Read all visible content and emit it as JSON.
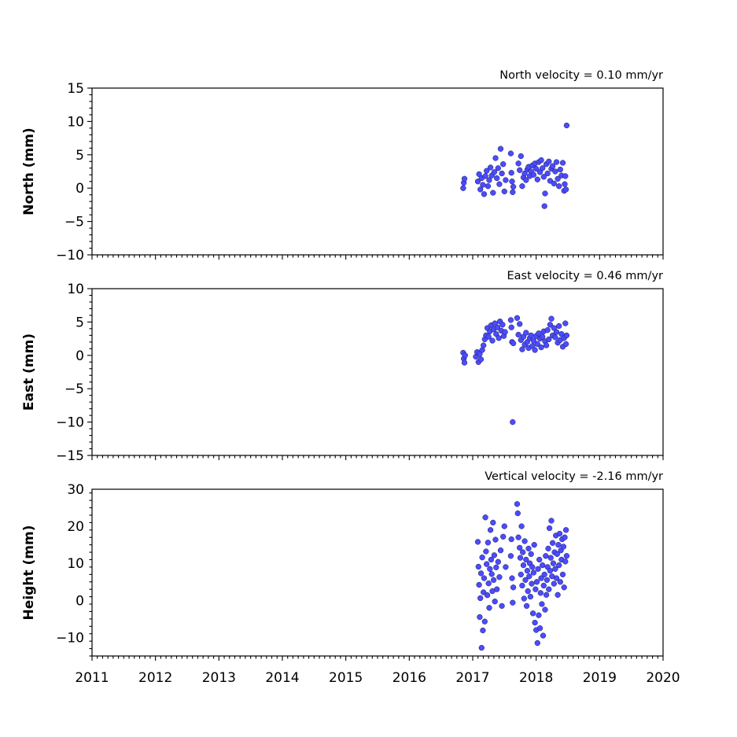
{
  "chart_data": [
    {
      "type": "scatter",
      "title": "North velocity = 0.10 mm/yr",
      "ylabel": "North (mm)",
      "xlabel": "",
      "xlim": [
        2011,
        2020
      ],
      "ylim": [
        -10,
        15
      ],
      "yticks": [
        -10,
        -5,
        0,
        5,
        10,
        15
      ],
      "ytick_labels": [
        "−10",
        "−5",
        "0",
        "5",
        "10",
        "15"
      ],
      "xticks": [
        2011,
        2012,
        2013,
        2014,
        2015,
        2016,
        2017,
        2018,
        2019,
        2020
      ],
      "xtick_labels": [],
      "color": "#4b4bff",
      "points": [
        [
          2016.85,
          0.0
        ],
        [
          2016.86,
          0.8
        ],
        [
          2016.87,
          1.4
        ],
        [
          2017.08,
          1.0
        ],
        [
          2017.1,
          2.1
        ],
        [
          2017.12,
          -0.2
        ],
        [
          2017.14,
          1.5
        ],
        [
          2017.16,
          0.5
        ],
        [
          2017.18,
          -0.9
        ],
        [
          2017.2,
          1.8
        ],
        [
          2017.22,
          2.6
        ],
        [
          2017.24,
          0.3
        ],
        [
          2017.26,
          1.2
        ],
        [
          2017.28,
          3.1
        ],
        [
          2017.3,
          1.9
        ],
        [
          2017.32,
          -0.7
        ],
        [
          2017.34,
          2.4
        ],
        [
          2017.36,
          4.5
        ],
        [
          2017.38,
          1.5
        ],
        [
          2017.4,
          3.0
        ],
        [
          2017.42,
          0.6
        ],
        [
          2017.44,
          5.9
        ],
        [
          2017.46,
          2.2
        ],
        [
          2017.48,
          3.6
        ],
        [
          2017.5,
          -0.5
        ],
        [
          2017.52,
          1.2
        ],
        [
          2017.6,
          5.2
        ],
        [
          2017.61,
          2.3
        ],
        [
          2017.62,
          1.0
        ],
        [
          2017.63,
          -0.6
        ],
        [
          2017.64,
          0.2
        ],
        [
          2017.72,
          3.7
        ],
        [
          2017.74,
          2.7
        ],
        [
          2017.76,
          4.8
        ],
        [
          2017.78,
          0.3
        ],
        [
          2017.8,
          1.6
        ],
        [
          2017.82,
          2.2
        ],
        [
          2017.84,
          1.2
        ],
        [
          2017.86,
          2.8
        ],
        [
          2017.88,
          3.2
        ],
        [
          2017.9,
          1.8
        ],
        [
          2017.92,
          2.5
        ],
        [
          2017.94,
          3.4
        ],
        [
          2017.96,
          2.0
        ],
        [
          2017.98,
          3.7
        ],
        [
          2018.0,
          2.9
        ],
        [
          2018.02,
          1.3
        ],
        [
          2018.04,
          3.9
        ],
        [
          2018.06,
          2.4
        ],
        [
          2018.08,
          4.2
        ],
        [
          2018.1,
          3.0
        ],
        [
          2018.12,
          1.7
        ],
        [
          2018.13,
          -2.7
        ],
        [
          2018.14,
          -0.8
        ],
        [
          2018.16,
          3.6
        ],
        [
          2018.18,
          2.2
        ],
        [
          2018.2,
          4.0
        ],
        [
          2018.22,
          1.1
        ],
        [
          2018.24,
          2.9
        ],
        [
          2018.26,
          3.3
        ],
        [
          2018.28,
          0.7
        ],
        [
          2018.3,
          2.5
        ],
        [
          2018.32,
          3.9
        ],
        [
          2018.34,
          1.4
        ],
        [
          2018.36,
          0.3
        ],
        [
          2018.38,
          2.8
        ],
        [
          2018.4,
          1.9
        ],
        [
          2018.42,
          3.8
        ],
        [
          2018.44,
          -0.4
        ],
        [
          2018.45,
          0.6
        ],
        [
          2018.46,
          1.8
        ],
        [
          2018.47,
          -0.2
        ],
        [
          2018.48,
          9.4
        ]
      ]
    },
    {
      "type": "scatter",
      "title": "East velocity = 0.46 mm/yr",
      "ylabel": "East (mm)",
      "xlabel": "",
      "xlim": [
        2011,
        2020
      ],
      "ylim": [
        -15,
        10
      ],
      "yticks": [
        -15,
        -10,
        -5,
        0,
        5,
        10
      ],
      "ytick_labels": [
        "−15",
        "−10",
        "−5",
        "0",
        "5",
        "10"
      ],
      "xticks": [
        2011,
        2012,
        2013,
        2014,
        2015,
        2016,
        2017,
        2018,
        2019,
        2020
      ],
      "xtick_labels": [],
      "color": "#4b4bff",
      "points": [
        [
          2016.85,
          0.4
        ],
        [
          2016.86,
          -0.5
        ],
        [
          2016.87,
          -1.1
        ],
        [
          2016.88,
          0.0
        ],
        [
          2017.05,
          -0.2
        ],
        [
          2017.07,
          0.5
        ],
        [
          2017.09,
          -1.0
        ],
        [
          2017.11,
          0.2
        ],
        [
          2017.13,
          -0.6
        ],
        [
          2017.15,
          0.8
        ],
        [
          2017.17,
          1.5
        ],
        [
          2017.19,
          2.4
        ],
        [
          2017.21,
          3.0
        ],
        [
          2017.23,
          4.1
        ],
        [
          2017.25,
          2.8
        ],
        [
          2017.27,
          3.6
        ],
        [
          2017.29,
          4.5
        ],
        [
          2017.31,
          2.2
        ],
        [
          2017.33,
          3.9
        ],
        [
          2017.35,
          4.8
        ],
        [
          2017.37,
          3.2
        ],
        [
          2017.39,
          4.2
        ],
        [
          2017.41,
          2.6
        ],
        [
          2017.43,
          5.1
        ],
        [
          2017.45,
          3.7
        ],
        [
          2017.47,
          4.6
        ],
        [
          2017.49,
          2.9
        ],
        [
          2017.51,
          3.5
        ],
        [
          2017.6,
          5.3
        ],
        [
          2017.61,
          4.2
        ],
        [
          2017.62,
          2.0
        ],
        [
          2017.63,
          -10.0
        ],
        [
          2017.64,
          1.8
        ],
        [
          2017.7,
          5.6
        ],
        [
          2017.72,
          3.1
        ],
        [
          2017.74,
          4.7
        ],
        [
          2017.76,
          2.3
        ],
        [
          2017.78,
          0.9
        ],
        [
          2017.8,
          2.8
        ],
        [
          2017.82,
          1.6
        ],
        [
          2017.84,
          3.4
        ],
        [
          2017.86,
          2.0
        ],
        [
          2017.88,
          1.1
        ],
        [
          2017.9,
          2.6
        ],
        [
          2017.92,
          3.0
        ],
        [
          2017.94,
          1.4
        ],
        [
          2017.96,
          2.2
        ],
        [
          2017.98,
          0.8
        ],
        [
          2018.0,
          2.9
        ],
        [
          2018.02,
          1.7
        ],
        [
          2018.04,
          3.3
        ],
        [
          2018.06,
          2.5
        ],
        [
          2018.08,
          1.2
        ],
        [
          2018.1,
          2.8
        ],
        [
          2018.12,
          3.6
        ],
        [
          2018.14,
          2.1
        ],
        [
          2018.16,
          1.5
        ],
        [
          2018.18,
          3.8
        ],
        [
          2018.2,
          2.4
        ],
        [
          2018.22,
          4.6
        ],
        [
          2018.24,
          5.5
        ],
        [
          2018.26,
          3.0
        ],
        [
          2018.28,
          4.1
        ],
        [
          2018.3,
          2.7
        ],
        [
          2018.32,
          3.5
        ],
        [
          2018.34,
          1.9
        ],
        [
          2018.36,
          4.4
        ],
        [
          2018.38,
          2.3
        ],
        [
          2018.4,
          3.2
        ],
        [
          2018.42,
          1.3
        ],
        [
          2018.44,
          2.6
        ],
        [
          2018.46,
          4.8
        ],
        [
          2018.47,
          1.7
        ],
        [
          2018.48,
          3.0
        ]
      ]
    },
    {
      "type": "scatter",
      "title": "Vertical velocity = -2.16 mm/yr",
      "ylabel": "Height (mm)",
      "xlabel": "",
      "xlim": [
        2011,
        2020
      ],
      "ylim": [
        -15,
        30
      ],
      "yticks": [
        -10,
        0,
        10,
        20,
        30
      ],
      "ytick_labels": [
        "−10",
        "0",
        "10",
        "20",
        "30"
      ],
      "xticks": [
        2011,
        2012,
        2013,
        2014,
        2015,
        2016,
        2017,
        2018,
        2019,
        2020
      ],
      "xtick_labels": [
        "2011",
        "2012",
        "2013",
        "2014",
        "2015",
        "2016",
        "2017",
        "2018",
        "2019",
        "2020"
      ],
      "color": "#4b4bff",
      "points": [
        [
          2017.08,
          15.8
        ],
        [
          2017.09,
          9.1
        ],
        [
          2017.1,
          4.2
        ],
        [
          2017.11,
          -4.5
        ],
        [
          2017.12,
          0.6
        ],
        [
          2017.13,
          7.3
        ],
        [
          2017.14,
          -12.8
        ],
        [
          2017.15,
          11.6
        ],
        [
          2017.16,
          -8.1
        ],
        [
          2017.17,
          2.2
        ],
        [
          2017.18,
          6.0
        ],
        [
          2017.19,
          -5.7
        ],
        [
          2017.2,
          22.4
        ],
        [
          2017.21,
          13.2
        ],
        [
          2017.22,
          9.8
        ],
        [
          2017.23,
          1.4
        ],
        [
          2017.24,
          15.6
        ],
        [
          2017.25,
          4.6
        ],
        [
          2017.26,
          -2.0
        ],
        [
          2017.27,
          8.5
        ],
        [
          2017.28,
          19.0
        ],
        [
          2017.29,
          11.0
        ],
        [
          2017.3,
          7.1
        ],
        [
          2017.31,
          2.5
        ],
        [
          2017.32,
          21.0
        ],
        [
          2017.33,
          5.5
        ],
        [
          2017.34,
          12.2
        ],
        [
          2017.35,
          -0.3
        ],
        [
          2017.36,
          16.4
        ],
        [
          2017.37,
          8.9
        ],
        [
          2017.38,
          3.0
        ],
        [
          2017.4,
          10.4
        ],
        [
          2017.42,
          6.3
        ],
        [
          2017.44,
          13.5
        ],
        [
          2017.46,
          -1.5
        ],
        [
          2017.48,
          17.2
        ],
        [
          2017.5,
          20.0
        ],
        [
          2017.52,
          9.0
        ],
        [
          2017.6,
          12.0
        ],
        [
          2017.61,
          16.5
        ],
        [
          2017.62,
          6.0
        ],
        [
          2017.63,
          -0.6
        ],
        [
          2017.64,
          3.5
        ],
        [
          2017.7,
          26.0
        ],
        [
          2017.71,
          23.5
        ],
        [
          2017.72,
          17.0
        ],
        [
          2017.74,
          14.2
        ],
        [
          2017.75,
          11.5
        ],
        [
          2017.76,
          7.0
        ],
        [
          2017.77,
          20.0
        ],
        [
          2017.78,
          4.0
        ],
        [
          2017.79,
          13.0
        ],
        [
          2017.8,
          9.5
        ],
        [
          2017.81,
          0.5
        ],
        [
          2017.82,
          16.0
        ],
        [
          2017.83,
          5.5
        ],
        [
          2017.84,
          11.0
        ],
        [
          2017.85,
          -1.5
        ],
        [
          2017.86,
          8.0
        ],
        [
          2017.87,
          2.5
        ],
        [
          2017.88,
          14.0
        ],
        [
          2017.89,
          6.5
        ],
        [
          2017.9,
          10.0
        ],
        [
          2017.91,
          1.0
        ],
        [
          2017.92,
          12.5
        ],
        [
          2017.93,
          4.5
        ],
        [
          2017.94,
          9.0
        ],
        [
          2017.95,
          -3.5
        ],
        [
          2017.96,
          7.5
        ],
        [
          2017.97,
          15.0
        ],
        [
          2017.98,
          -6.0
        ],
        [
          2017.99,
          3.0
        ],
        [
          2018.0,
          -8.0
        ],
        [
          2018.01,
          5.0
        ],
        [
          2018.02,
          -11.5
        ],
        [
          2018.03,
          8.5
        ],
        [
          2018.04,
          -4.0
        ],
        [
          2018.05,
          11.0
        ],
        [
          2018.06,
          -7.5
        ],
        [
          2018.07,
          2.0
        ],
        [
          2018.08,
          6.0
        ],
        [
          2018.09,
          -1.0
        ],
        [
          2018.1,
          9.5
        ],
        [
          2018.11,
          -9.5
        ],
        [
          2018.12,
          4.0
        ],
        [
          2018.13,
          7.0
        ],
        [
          2018.14,
          -2.5
        ],
        [
          2018.15,
          12.0
        ],
        [
          2018.16,
          1.5
        ],
        [
          2018.17,
          5.5
        ],
        [
          2018.18,
          9.0
        ],
        [
          2018.19,
          14.0
        ],
        [
          2018.2,
          3.0
        ],
        [
          2018.21,
          19.5
        ],
        [
          2018.22,
          8.0
        ],
        [
          2018.23,
          11.5
        ],
        [
          2018.24,
          21.5
        ],
        [
          2018.25,
          6.5
        ],
        [
          2018.26,
          15.5
        ],
        [
          2018.27,
          10.0
        ],
        [
          2018.28,
          4.5
        ],
        [
          2018.29,
          13.0
        ],
        [
          2018.3,
          8.5
        ],
        [
          2018.31,
          17.5
        ],
        [
          2018.32,
          6.0
        ],
        [
          2018.33,
          12.5
        ],
        [
          2018.34,
          1.5
        ],
        [
          2018.35,
          15.0
        ],
        [
          2018.36,
          9.5
        ],
        [
          2018.37,
          18.0
        ],
        [
          2018.38,
          5.0
        ],
        [
          2018.39,
          13.5
        ],
        [
          2018.4,
          11.0
        ],
        [
          2018.41,
          16.5
        ],
        [
          2018.42,
          7.0
        ],
        [
          2018.43,
          14.5
        ],
        [
          2018.44,
          3.5
        ],
        [
          2018.45,
          17.0
        ],
        [
          2018.46,
          10.5
        ],
        [
          2018.47,
          19.0
        ],
        [
          2018.48,
          12.0
        ]
      ]
    }
  ]
}
